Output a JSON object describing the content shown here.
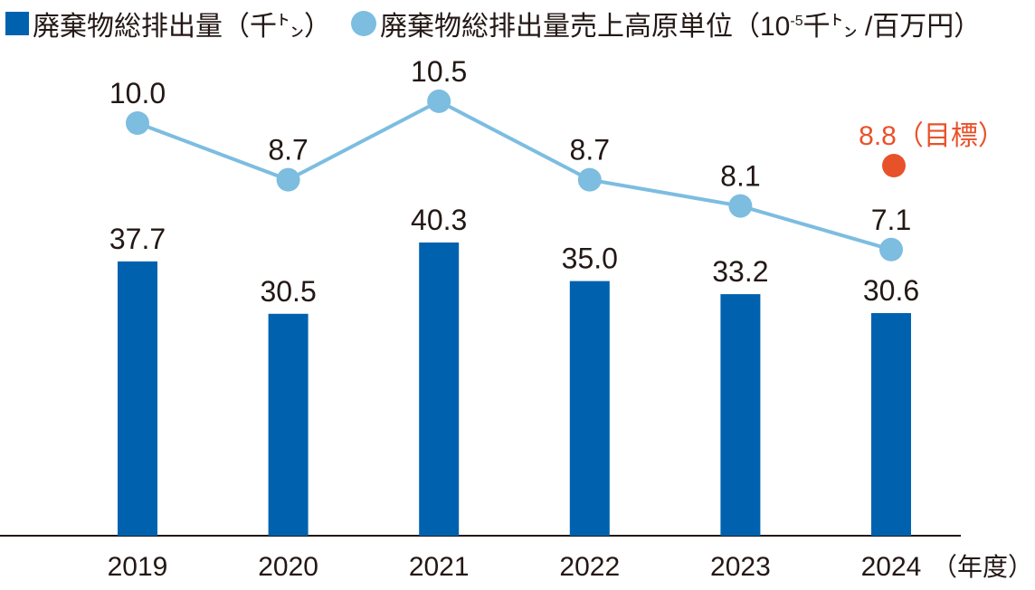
{
  "chart_data": {
    "type": "bar+line",
    "categories": [
      "2019",
      "2020",
      "2021",
      "2022",
      "2023",
      "2024"
    ],
    "x_unit_label": "（年度）",
    "series": [
      {
        "name": "廃棄物総排出量（千㌧）",
        "type": "bar",
        "color": "#0062ae",
        "values": [
          37.7,
          30.5,
          40.3,
          35.0,
          33.2,
          30.6
        ],
        "labels": [
          "37.7",
          "30.5",
          "40.3",
          "35.0",
          "33.2",
          "30.6"
        ]
      },
      {
        "name": "廃棄物総排出量売上高原単位（10-5千㌧/百万円）",
        "type": "line",
        "color": "#7cbde0",
        "values": [
          10.0,
          8.7,
          10.5,
          8.7,
          8.1,
          7.1
        ],
        "labels": [
          "10.0",
          "8.7",
          "10.5",
          "8.7",
          "8.1",
          "7.1"
        ]
      }
    ],
    "target": {
      "category": "2024",
      "value": 8.8,
      "label": "8.8（目標）",
      "color": "#e8522a"
    },
    "legend": {
      "position": "top",
      "bar_label": "廃棄物総排出量（千㌧）",
      "line_label_main": "廃棄物総排出量売上高原単位（10",
      "line_label_sup": "-5",
      "line_label_tail": "千㌧ /百万円）"
    },
    "grid": false
  }
}
